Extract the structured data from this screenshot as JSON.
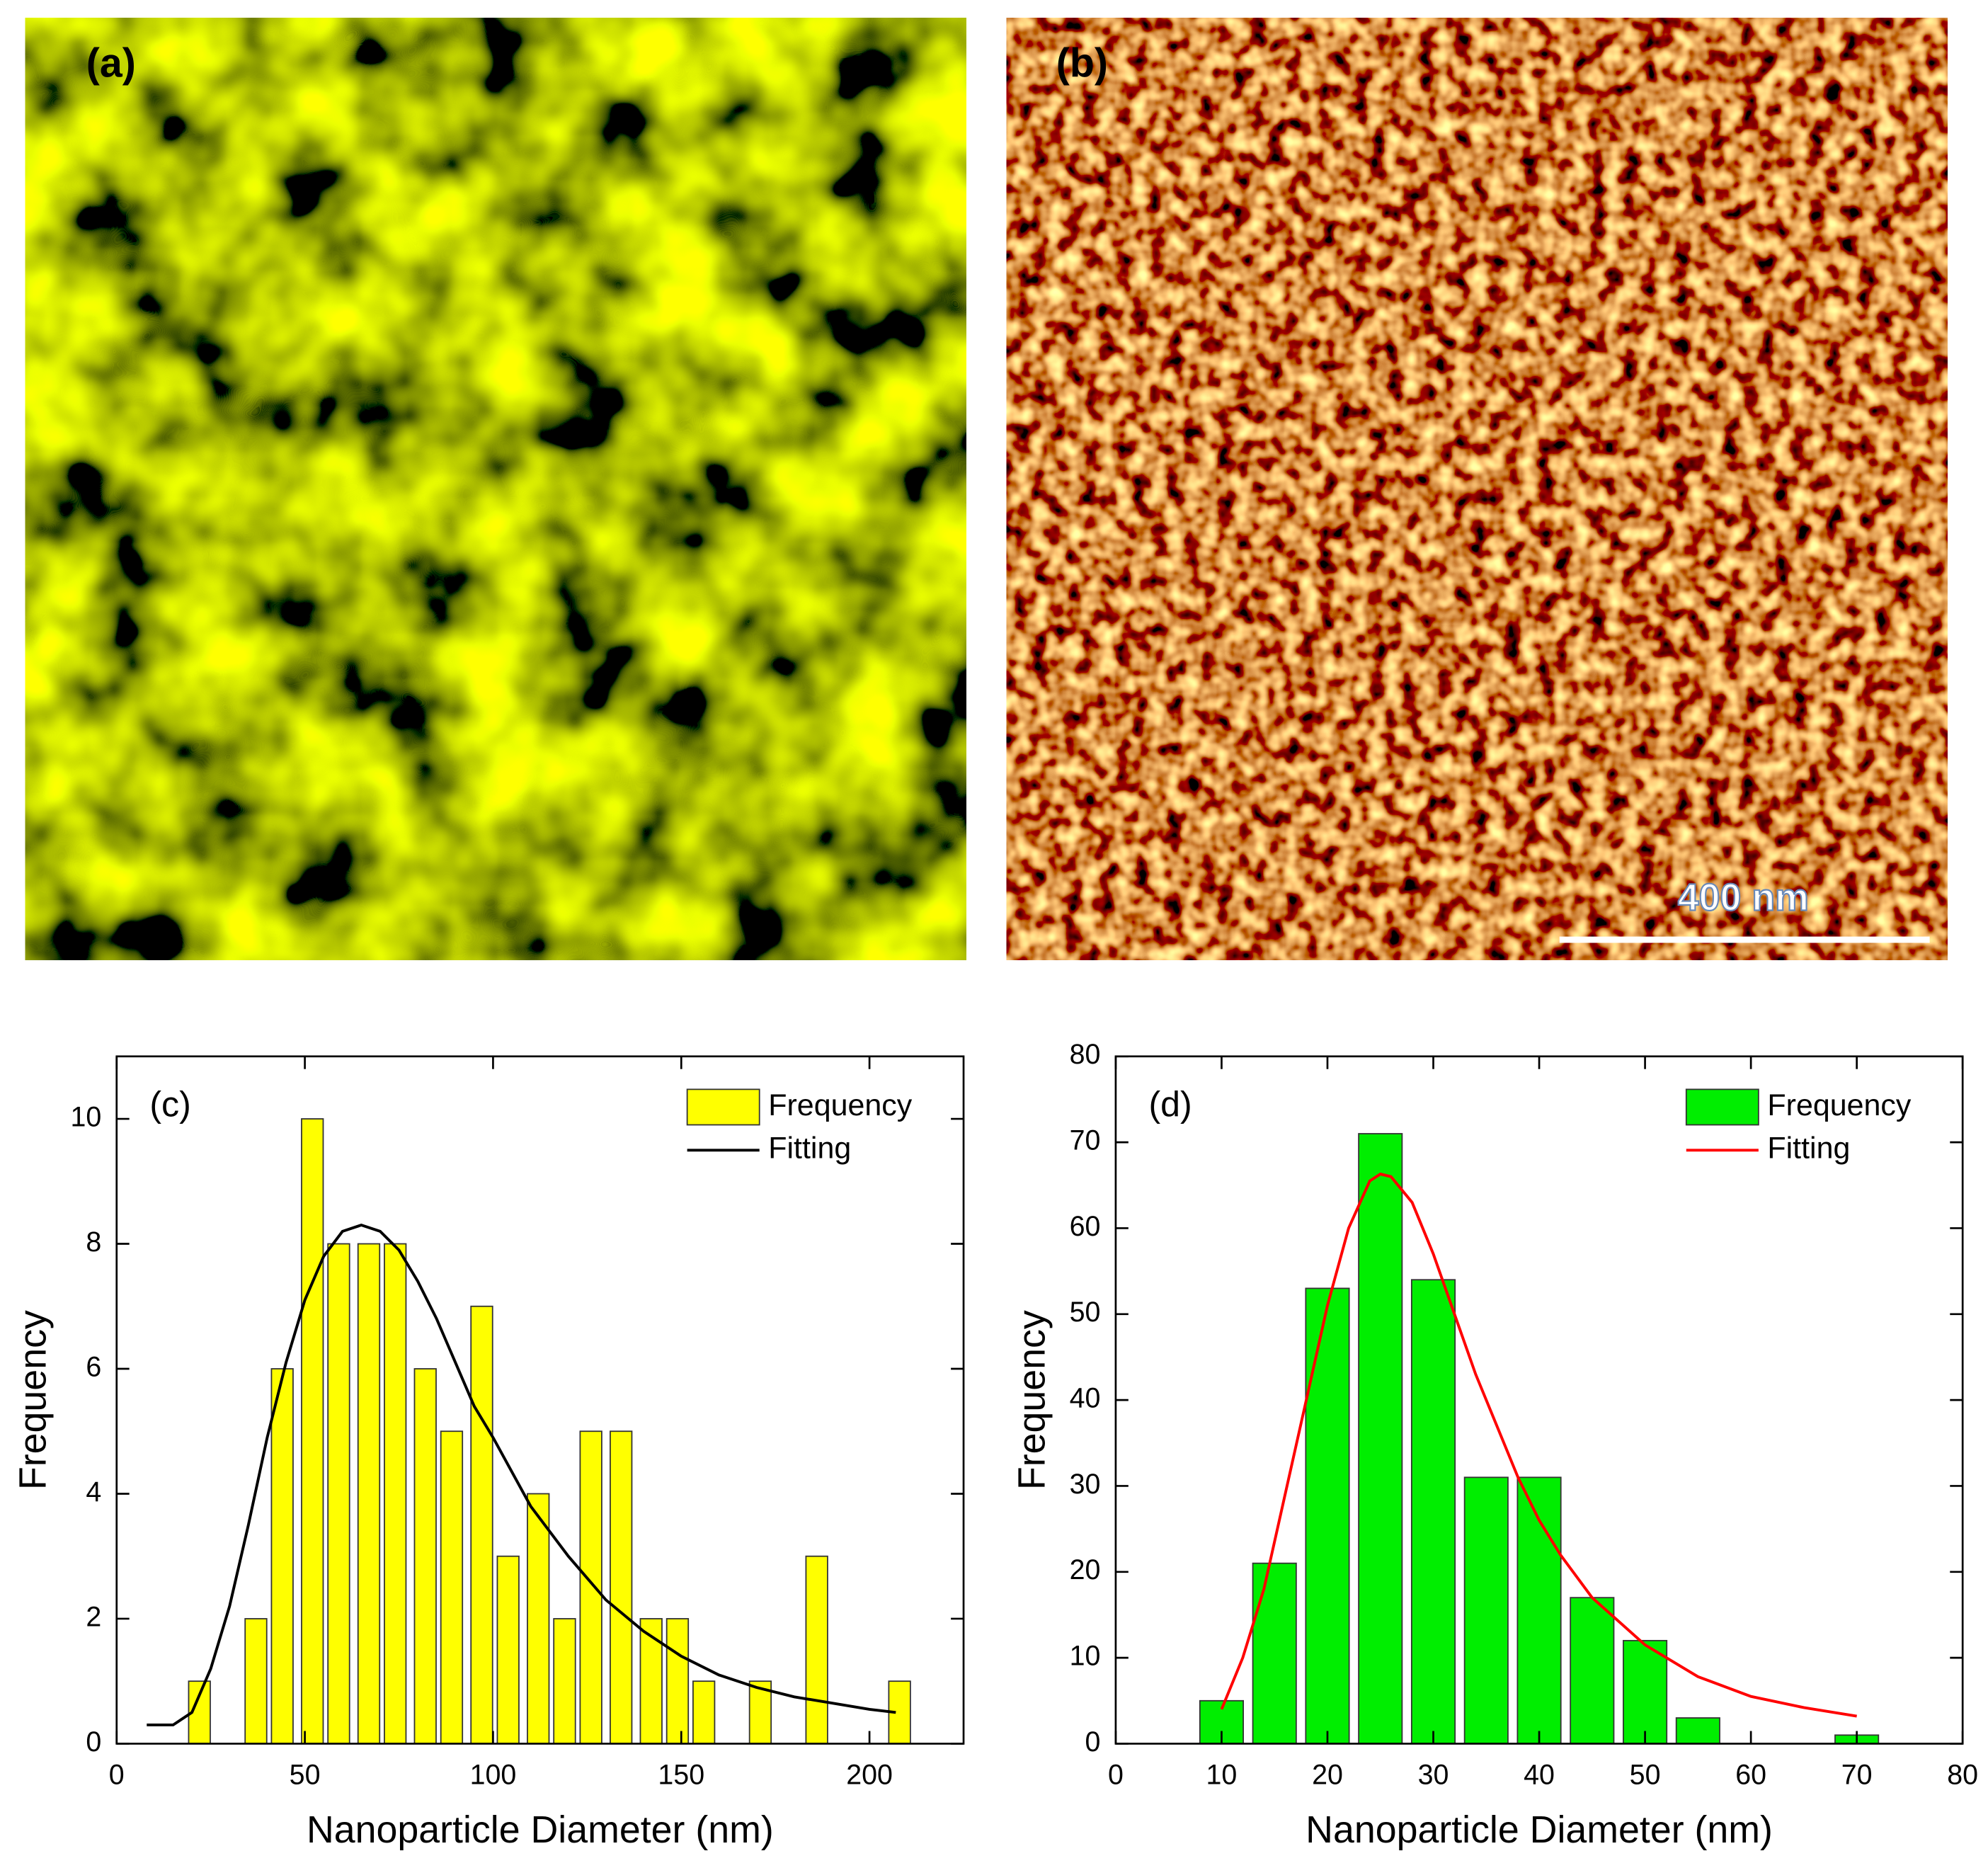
{
  "panels": [
    {
      "label": "(a)"
    },
    {
      "label": "(b)",
      "scale_bar": "400 nm"
    }
  ],
  "chart_data": [
    {
      "type": "histogram",
      "annotation": "(c)",
      "xlabel": "Nanoparticle Diameter (nm)",
      "ylabel": "Frequency",
      "xlim": [
        0,
        225
      ],
      "ylim": [
        0,
        11
      ],
      "xticks": [
        0,
        50,
        100,
        150,
        200
      ],
      "yticks": [
        0,
        2,
        4,
        6,
        8,
        10
      ],
      "legend": "upper right",
      "series": [
        {
          "name": "Frequency",
          "type": "bar",
          "color": "#ffff00",
          "x": [
            22,
            37,
            44,
            52,
            59,
            67,
            74,
            82,
            89,
            97,
            104,
            112,
            119,
            126,
            134,
            142,
            149,
            156,
            171,
            186,
            208
          ],
          "values": [
            1,
            2,
            6,
            10,
            8,
            8,
            8,
            6,
            5,
            7,
            3,
            4,
            2,
            5,
            5,
            2,
            2,
            1,
            1,
            3,
            1
          ]
        },
        {
          "name": "Fitting",
          "type": "line",
          "color": "#000000",
          "x": [
            8,
            15,
            20,
            25,
            30,
            35,
            40,
            45,
            50,
            55,
            60,
            65,
            70,
            75,
            80,
            85,
            90,
            95,
            100,
            110,
            120,
            130,
            140,
            150,
            160,
            170,
            180,
            190,
            200,
            207
          ],
          "values": [
            0.3,
            0.3,
            0.5,
            1.2,
            2.2,
            3.5,
            4.9,
            6.1,
            7.1,
            7.8,
            8.2,
            8.3,
            8.2,
            7.9,
            7.4,
            6.8,
            6.1,
            5.4,
            4.9,
            3.8,
            3.0,
            2.3,
            1.8,
            1.4,
            1.1,
            0.9,
            0.75,
            0.65,
            0.55,
            0.5
          ]
        }
      ]
    },
    {
      "type": "histogram",
      "annotation": "(d)",
      "xlabel": "Nanoparticle Diameter (nm)",
      "ylabel": "Frequency",
      "xlim": [
        0,
        80
      ],
      "ylim": [
        0,
        80
      ],
      "xticks": [
        0,
        10,
        20,
        30,
        40,
        50,
        60,
        70,
        80
      ],
      "yticks": [
        0,
        10,
        20,
        30,
        40,
        50,
        60,
        70,
        80
      ],
      "legend": "upper right",
      "series": [
        {
          "name": "Frequency",
          "type": "bar",
          "color": "#00ee00",
          "x": [
            10,
            15,
            20,
            25,
            30,
            35,
            40,
            45,
            50,
            55,
            70
          ],
          "values": [
            5,
            21,
            53,
            71,
            54,
            31,
            31,
            17,
            12,
            3,
            1
          ]
        },
        {
          "name": "Fitting",
          "type": "line",
          "color": "#ff0000",
          "x": [
            10,
            12,
            14,
            16,
            18,
            20,
            22,
            24,
            25,
            26,
            28,
            30,
            32,
            34,
            36,
            38,
            40,
            42,
            45,
            50,
            55,
            60,
            65,
            70
          ],
          "values": [
            4,
            10,
            18,
            29,
            40,
            51,
            60,
            65.5,
            66.3,
            66,
            63,
            57,
            50,
            43,
            37,
            31,
            26,
            22,
            17,
            11.5,
            7.8,
            5.5,
            4.2,
            3.2
          ]
        }
      ]
    }
  ]
}
